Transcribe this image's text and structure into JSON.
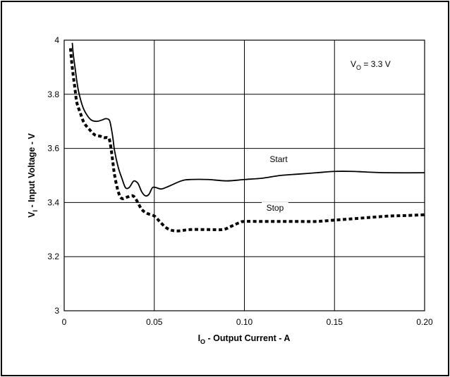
{
  "chart_data": {
    "type": "line",
    "xlim": [
      0,
      0.2
    ],
    "ylim": [
      3,
      4
    ],
    "x_ticks": [
      "0",
      "0.05",
      "0.10",
      "0.15",
      "0.20"
    ],
    "y_ticks": [
      "3",
      "3.2",
      "3.4",
      "3.6",
      "3.8",
      "4"
    ],
    "xlabel": {
      "main": "I",
      "sub": "O",
      "rest": " - Output Current - A"
    },
    "ylabel": {
      "main": "V",
      "sub": "I",
      "rest": " - Input Voltage - V"
    },
    "annotation": {
      "main": "V",
      "sub": "O",
      "rest": " = 3.3 V"
    },
    "grid": true,
    "series": [
      {
        "name": "Start",
        "style": "solid",
        "color": "#000000",
        "points": [
          [
            0.0045,
            3.99
          ],
          [
            0.005,
            3.95
          ],
          [
            0.006,
            3.9
          ],
          [
            0.007,
            3.85
          ],
          [
            0.008,
            3.81
          ],
          [
            0.01,
            3.76
          ],
          [
            0.012,
            3.73
          ],
          [
            0.015,
            3.705
          ],
          [
            0.018,
            3.7
          ],
          [
            0.021,
            3.705
          ],
          [
            0.023,
            3.71
          ],
          [
            0.025,
            3.705
          ],
          [
            0.026,
            3.68
          ],
          [
            0.027,
            3.64
          ],
          [
            0.028,
            3.59
          ],
          [
            0.03,
            3.53
          ],
          [
            0.032,
            3.49
          ],
          [
            0.034,
            3.455
          ],
          [
            0.036,
            3.455
          ],
          [
            0.038,
            3.475
          ],
          [
            0.039,
            3.48
          ],
          [
            0.041,
            3.47
          ],
          [
            0.043,
            3.44
          ],
          [
            0.045,
            3.425
          ],
          [
            0.047,
            3.43
          ],
          [
            0.049,
            3.455
          ],
          [
            0.051,
            3.455
          ],
          [
            0.054,
            3.45
          ],
          [
            0.058,
            3.46
          ],
          [
            0.065,
            3.48
          ],
          [
            0.07,
            3.485
          ],
          [
            0.08,
            3.485
          ],
          [
            0.09,
            3.48
          ],
          [
            0.1,
            3.485
          ],
          [
            0.11,
            3.49
          ],
          [
            0.12,
            3.5
          ],
          [
            0.13,
            3.505
          ],
          [
            0.14,
            3.51
          ],
          [
            0.15,
            3.515
          ],
          [
            0.16,
            3.515
          ],
          [
            0.17,
            3.512
          ],
          [
            0.18,
            3.51
          ],
          [
            0.2,
            3.51
          ]
        ]
      },
      {
        "name": "Stop",
        "style": "dashed",
        "color": "#000000",
        "points": [
          [
            0.0035,
            3.97
          ],
          [
            0.004,
            3.93
          ],
          [
            0.005,
            3.87
          ],
          [
            0.006,
            3.82
          ],
          [
            0.007,
            3.77
          ],
          [
            0.009,
            3.73
          ],
          [
            0.011,
            3.695
          ],
          [
            0.014,
            3.67
          ],
          [
            0.017,
            3.65
          ],
          [
            0.02,
            3.645
          ],
          [
            0.022,
            3.64
          ],
          [
            0.024,
            3.64
          ],
          [
            0.025,
            3.635
          ],
          [
            0.026,
            3.6
          ],
          [
            0.027,
            3.55
          ],
          [
            0.028,
            3.5
          ],
          [
            0.03,
            3.44
          ],
          [
            0.032,
            3.415
          ],
          [
            0.035,
            3.42
          ],
          [
            0.038,
            3.425
          ],
          [
            0.04,
            3.41
          ],
          [
            0.043,
            3.375
          ],
          [
            0.046,
            3.36
          ],
          [
            0.05,
            3.35
          ],
          [
            0.053,
            3.33
          ],
          [
            0.057,
            3.305
          ],
          [
            0.062,
            3.295
          ],
          [
            0.07,
            3.3
          ],
          [
            0.08,
            3.3
          ],
          [
            0.088,
            3.3
          ],
          [
            0.092,
            3.31
          ],
          [
            0.097,
            3.325
          ],
          [
            0.1,
            3.33
          ],
          [
            0.11,
            3.33
          ],
          [
            0.12,
            3.33
          ],
          [
            0.13,
            3.33
          ],
          [
            0.14,
            3.33
          ],
          [
            0.15,
            3.335
          ],
          [
            0.16,
            3.34
          ],
          [
            0.17,
            3.345
          ],
          [
            0.18,
            3.35
          ],
          [
            0.19,
            3.352
          ],
          [
            0.2,
            3.355
          ]
        ]
      }
    ],
    "series_labels": [
      {
        "text": "Start",
        "x": 0.119,
        "y": 3.555
      },
      {
        "text": "Stop",
        "x": 0.117,
        "y": 3.375
      }
    ]
  }
}
